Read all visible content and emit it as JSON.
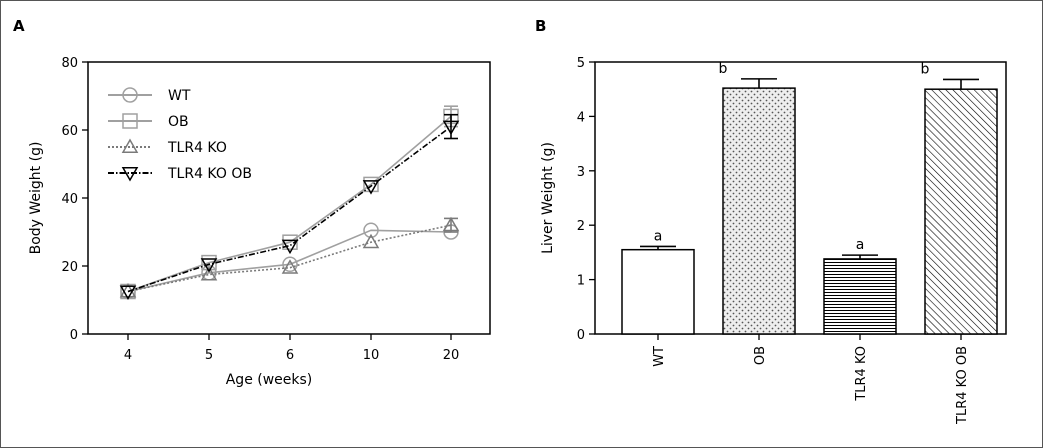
{
  "panels": {
    "a": "A",
    "b": "B"
  },
  "chart_data": [
    {
      "type": "line",
      "panel": "A",
      "xlabel": "Age (weeks)",
      "ylabel": "Body Weight (g)",
      "categories": [
        "4",
        "5",
        "6",
        "10",
        "20"
      ],
      "ylim": [
        0,
        80
      ],
      "yticks": [
        0,
        20,
        40,
        60,
        80
      ],
      "grid": false,
      "legend_position": "top-left",
      "series": [
        {
          "name": "WT",
          "marker": "circle",
          "color": "#a0a0a0",
          "dash": "solid",
          "values": [
            12.5,
            18,
            20.5,
            30.5,
            30
          ],
          "errors": [
            0.8,
            0.8,
            0.8,
            1,
            1
          ]
        },
        {
          "name": "OB",
          "marker": "square",
          "color": "#a0a0a0",
          "dash": "solid",
          "values": [
            12.5,
            21,
            27,
            44,
            64
          ],
          "errors": [
            0.8,
            1,
            1,
            1.2,
            3
          ]
        },
        {
          "name": "TLR4 KO",
          "marker": "triangle-up",
          "color": "#7a7a7a",
          "dash": "dotted",
          "values": [
            12.5,
            17.5,
            19.5,
            27,
            32
          ],
          "errors": [
            0.8,
            0.8,
            0.8,
            1.5,
            2
          ]
        },
        {
          "name": "TLR4 KO OB",
          "marker": "triangle-down",
          "color": "#000000",
          "dash": "dashdot",
          "values": [
            12.5,
            20.5,
            26,
            43.5,
            61
          ],
          "errors": [
            0.8,
            1,
            1,
            1.2,
            3.5
          ]
        }
      ]
    },
    {
      "type": "bar",
      "panel": "B",
      "xlabel": "",
      "ylabel": "Liver Weight (g)",
      "categories": [
        "WT",
        "OB",
        "TLR4 KO",
        "TLR4 KO OB"
      ],
      "values": [
        1.55,
        4.52,
        1.38,
        4.5
      ],
      "errors": [
        0.06,
        0.17,
        0.07,
        0.18
      ],
      "significance": [
        "a",
        "b",
        "a",
        "b"
      ],
      "patterns": [
        "none",
        "dots",
        "horizontal-lines",
        "diagonal-lines"
      ],
      "ylim": [
        0,
        5
      ],
      "yticks": [
        0,
        1,
        2,
        3,
        4,
        5
      ],
      "grid": false
    }
  ]
}
